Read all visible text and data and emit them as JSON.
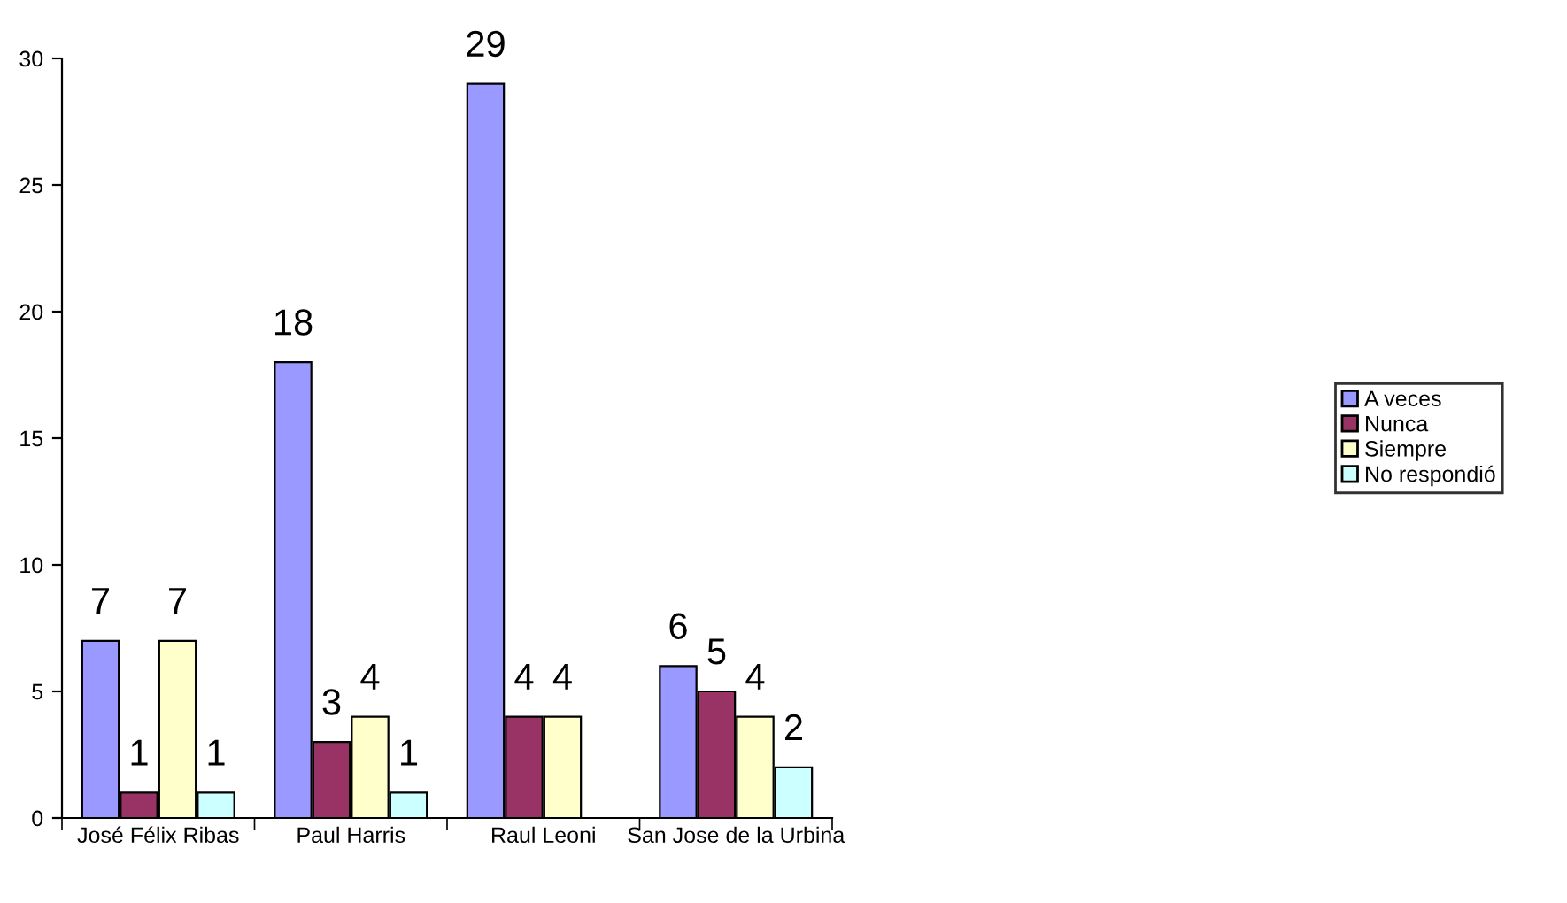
{
  "chart_data": {
    "type": "bar",
    "categories": [
      "José Félix Ribas",
      "Paul Harris",
      "Raul Leoni",
      "San Jose de la Urbina"
    ],
    "series": [
      {
        "name": "A veces",
        "color": "#9999ff",
        "values": [
          7,
          18,
          29,
          6
        ],
        "value_labels": [
          "7",
          "18",
          "29",
          "6"
        ]
      },
      {
        "name": "Nunca",
        "color": "#993366",
        "values": [
          1,
          3,
          4,
          5
        ],
        "value_labels": [
          "1",
          "3",
          "4",
          "5"
        ]
      },
      {
        "name": "Siempre",
        "color": "#ffffcc",
        "values": [
          7,
          4,
          4,
          4
        ],
        "value_labels": [
          "7",
          "4",
          "4",
          "4"
        ]
      },
      {
        "name": "No respondió",
        "color": "#ccffff",
        "values": [
          1,
          1,
          null,
          2
        ],
        "value_labels": [
          "1",
          "1",
          null,
          "2"
        ]
      }
    ],
    "ylim": [
      0,
      30
    ],
    "yticks": [
      0,
      5,
      10,
      15,
      20,
      25,
      30
    ],
    "grid": false,
    "legend": "right"
  }
}
